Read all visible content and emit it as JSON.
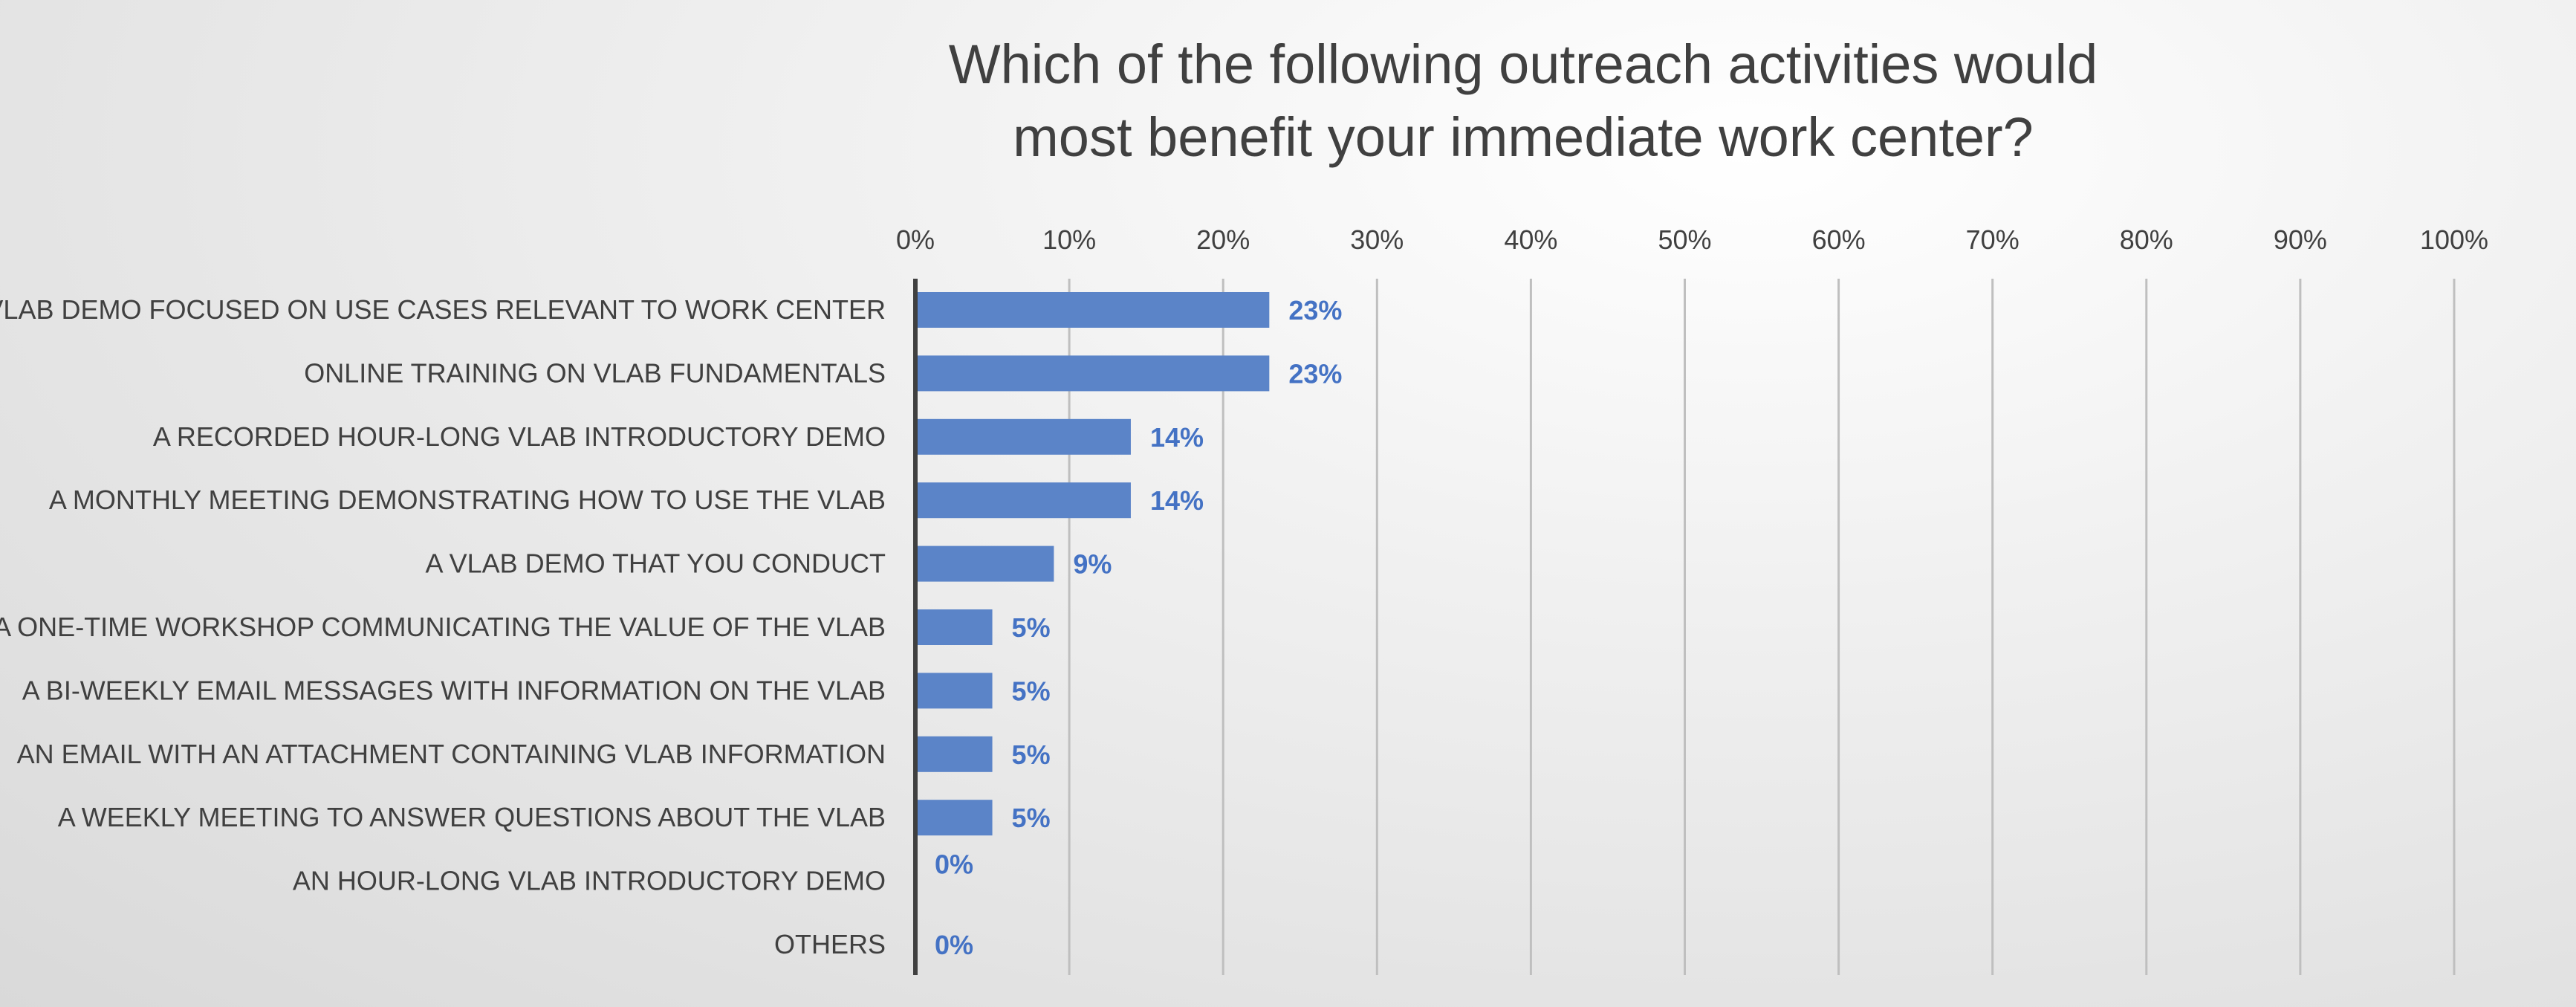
{
  "chart_data": {
    "type": "bar",
    "orientation": "horizontal",
    "title_lines": [
      "Which of the following outreach activities would",
      "most benefit your immediate work center?"
    ],
    "categories": [
      "A VLAB DEMO FOCUSED ON USE CASES RELEVANT TO WORK CENTER",
      "ONLINE TRAINING ON VLAB FUNDAMENTALS",
      "A RECORDED HOUR-LONG VLAB INTRODUCTORY DEMO",
      "A MONTHLY MEETING DEMONSTRATING HOW TO USE THE VLAB",
      "A VLAB DEMO THAT YOU CONDUCT",
      "A ONE-TIME WORKSHOP COMMUNICATING THE VALUE OF THE VLAB",
      "A BI-WEEKLY EMAIL MESSAGES WITH INFORMATION ON THE VLAB",
      "AN EMAIL WITH AN ATTACHMENT CONTAINING VLAB INFORMATION",
      "A WEEKLY MEETING TO ANSWER QUESTIONS ABOUT THE VLAB",
      "AN HOUR-LONG VLAB INTRODUCTORY DEMO",
      "OTHERS"
    ],
    "values": [
      23,
      23,
      14,
      14,
      9,
      5,
      5,
      5,
      5,
      0,
      0
    ],
    "data_labels": [
      "23%",
      "23%",
      "14%",
      "14%",
      "9%",
      "5%",
      "5%",
      "5%",
      "5%",
      "0%",
      "0%"
    ],
    "x_ticks": [
      "0%",
      "10%",
      "20%",
      "30%",
      "40%",
      "50%",
      "60%",
      "70%",
      "80%",
      "90%",
      "100%"
    ],
    "xlim": [
      0,
      100
    ],
    "x_axis_position": "top",
    "grid": true,
    "legend": "none",
    "colors": {
      "bar": "#5b84c8",
      "data_label": "#4472c4",
      "gridline": "#bfbfbf",
      "axis": "#404040",
      "text": "#404040"
    }
  }
}
